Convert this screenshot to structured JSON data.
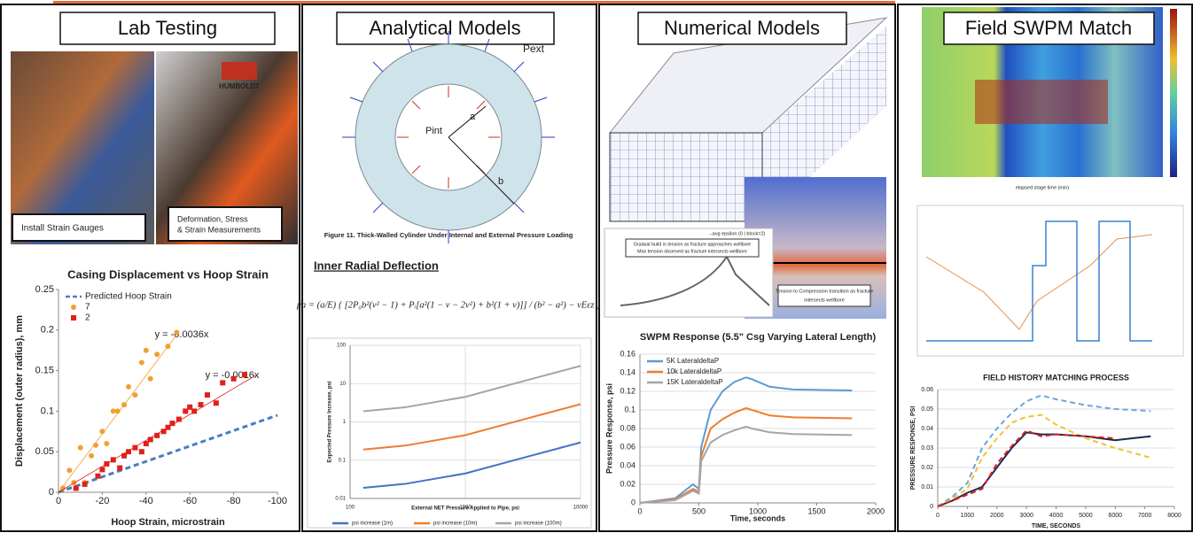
{
  "panels": [
    {
      "title": "Lab Testing",
      "captions": [
        "Install Strain Gauges",
        "Deformation, Stress",
        "& Strain Measurements"
      ],
      "brand": "HUMBOLDT"
    },
    {
      "title": "Analytical Models",
      "diagram_labels": [
        "Pext",
        "Pint",
        "a",
        "b"
      ],
      "caption": "Figure 11.  Thick-Walled Cylinder Under Internal and External Pressure Loading",
      "heading": "Inner Radial Deflection",
      "formula": "μa = (a/E) { [2P₀b²(ν² − 1) + Pᵢ[a²(1 − ν − 2ν²) + b²(1 + ν)]] / (b² − a²) − νEεz }"
    },
    {
      "title": "Numerical Models",
      "notes": [
        "Gradual build in tension as fracture approaches wellbore",
        "Max tension observed as fracture intersects wellbore",
        "Tension to Compression transition as fracture",
        "intersects wellbore"
      ],
      "legend": "--avg epsilon (0 | block=2)"
    },
    {
      "title": "Field SWPM Match",
      "heatmap_xlabel": "elapsed stage time (min)"
    }
  ],
  "chart_data": [
    {
      "type": "scatter",
      "title": "Casing Displacement vs Hoop Strain",
      "x_label": "Hoop Strain, microstrain",
      "y_label": "Displacement (outer radius), mm",
      "xlim": [
        0,
        -100
      ],
      "xticks": [
        0,
        -20,
        -40,
        -60,
        -80,
        -100
      ],
      "ylim": [
        0,
        0.25
      ],
      "yticks": [
        0,
        0.05,
        0.1,
        0.15,
        0.2,
        0.25
      ],
      "grid": false,
      "legend": "top-left",
      "annotations": [
        "y = -0.0036x",
        "y = -0.0016x"
      ],
      "series": [
        {
          "name": "Predicted Hoop Strain",
          "color": "#4a7cc4",
          "style": "line",
          "dash": true,
          "x": [
            0,
            -100
          ],
          "values": [
            0,
            0.095
          ]
        },
        {
          "name": "7",
          "color": "#f0a030",
          "style": "points",
          "marker": "circle",
          "x": [
            -2,
            -5,
            -7,
            -10,
            -12,
            -15,
            -17,
            -20,
            -22,
            -25,
            -27,
            -30,
            -32,
            -35,
            -38,
            -40,
            -42,
            -45,
            -50,
            -54
          ],
          "values": [
            0.005,
            0.027,
            0.012,
            0.055,
            0.012,
            0.045,
            0.058,
            0.075,
            0.06,
            0.1,
            0.1,
            0.108,
            0.13,
            0.12,
            0.16,
            0.175,
            0.14,
            0.17,
            0.18,
            0.197
          ]
        },
        {
          "name": "2",
          "color": "#e0201b",
          "style": "points",
          "marker": "square",
          "x": [
            -8,
            -12,
            -18,
            -20,
            -22,
            -25,
            -28,
            -30,
            -32,
            -35,
            -38,
            -40,
            -42,
            -45,
            -48,
            -50,
            -52,
            -55,
            -58,
            -60,
            -62,
            -65,
            -68,
            -72,
            -75,
            -80,
            -85
          ],
          "values": [
            0.005,
            0.01,
            0.02,
            0.028,
            0.035,
            0.04,
            0.03,
            0.045,
            0.05,
            0.055,
            0.05,
            0.06,
            0.065,
            0.07,
            0.075,
            0.08,
            0.085,
            0.09,
            0.1,
            0.105,
            0.1,
            0.108,
            0.12,
            0.11,
            0.135,
            0.14,
            0.145
          ]
        },
        {
          "color": "#f0a030",
          "style": "line",
          "x": [
            0,
            -55
          ],
          "values": [
            0,
            0.198
          ]
        },
        {
          "color": "#e0201b",
          "style": "line",
          "x": [
            0,
            -90
          ],
          "values": [
            0,
            0.144
          ]
        }
      ]
    },
    {
      "type": "line",
      "x_label": "External NET Pressure Applied to Pipe, psi",
      "y_label": "Expected Pressure Increase, psi",
      "xlog": true,
      "ylog": true,
      "xlim": [
        100,
        10000
      ],
      "xticks": [
        100,
        1000,
        10000
      ],
      "ylim": [
        0.01,
        100
      ],
      "yticks": [
        0.01,
        0.1,
        1,
        10,
        100
      ],
      "grid": true,
      "legend": "bottom",
      "series": [
        {
          "name": "psi increase (1m)",
          "color": "#4472c4",
          "style": "line",
          "x": [
            130,
            300,
            1000,
            3000,
            10000
          ],
          "values": [
            0.019,
            0.024,
            0.045,
            0.11,
            0.29
          ]
        },
        {
          "name": "psi increase (10m)",
          "color": "#ed7d31",
          "style": "line",
          "x": [
            130,
            300,
            1000,
            3000,
            10000
          ],
          "values": [
            0.19,
            0.24,
            0.45,
            1.1,
            2.9
          ]
        },
        {
          "name": "psi increase (100m)",
          "color": "#a5a5a5",
          "style": "line",
          "x": [
            130,
            300,
            1000,
            3000,
            10000
          ],
          "values": [
            1.9,
            2.4,
            4.5,
            11,
            29
          ]
        }
      ]
    },
    {
      "type": "line",
      "title": "SWPM Response (5.5\" Csg Varying Lateral Length)",
      "x_label": "Time, seconds",
      "y_label": "Pressure Response, psi",
      "xlim": [
        0,
        2000
      ],
      "xticks": [
        0,
        500,
        1000,
        1500,
        2000
      ],
      "ylim": [
        0,
        0.16
      ],
      "yticks": [
        0,
        0.02,
        0.04,
        0.06,
        0.08,
        0.1,
        0.12,
        0.14,
        0.16
      ],
      "grid": true,
      "legend": "top-left",
      "series": [
        {
          "name": "5K LateraldeltaP",
          "color": "#5b9bd5",
          "style": "line",
          "x": [
            0,
            300,
            450,
            500,
            520,
            600,
            700,
            800,
            900,
            950,
            1100,
            1300,
            1800
          ],
          "values": [
            0,
            0.005,
            0.02,
            0.015,
            0.06,
            0.1,
            0.12,
            0.13,
            0.135,
            0.133,
            0.125,
            0.122,
            0.121
          ]
        },
        {
          "name": "10k LateraldeltaP",
          "color": "#ed7d31",
          "style": "line",
          "x": [
            0,
            300,
            450,
            500,
            520,
            600,
            700,
            800,
            900,
            950,
            1100,
            1300,
            1800
          ],
          "values": [
            0,
            0.004,
            0.015,
            0.012,
            0.05,
            0.08,
            0.09,
            0.097,
            0.102,
            0.1,
            0.094,
            0.092,
            0.091
          ]
        },
        {
          "name": "15K LateraldeltaP",
          "color": "#a5a5a5",
          "style": "line",
          "x": [
            0,
            300,
            450,
            500,
            520,
            600,
            700,
            800,
            900,
            950,
            1100,
            1300,
            1800
          ],
          "values": [
            0,
            0.003,
            0.013,
            0.01,
            0.045,
            0.065,
            0.073,
            0.078,
            0.082,
            0.08,
            0.076,
            0.074,
            0.073
          ]
        }
      ]
    },
    {
      "type": "line",
      "title": "FIELD HISTORY MATCHING PROCESS",
      "x_label": "TIME, SECONDS",
      "y_label": "PRESSURE RESPONSE, PSI",
      "xlim": [
        0,
        8000
      ],
      "xticks": [
        0,
        1000,
        2000,
        3000,
        4000,
        5000,
        6000,
        7000,
        8000
      ],
      "ylim": [
        0,
        0.06
      ],
      "yticks": [
        0,
        0.01,
        0.02,
        0.03,
        0.04,
        0.05,
        0.06
      ],
      "grid": true,
      "series": [
        {
          "color": "#6aa6e0",
          "style": "line",
          "dash": true,
          "x": [
            0,
            500,
            1000,
            1500,
            2000,
            2500,
            3000,
            3500,
            4000,
            5000,
            6000,
            7200
          ],
          "values": [
            0,
            0.005,
            0.012,
            0.03,
            0.04,
            0.048,
            0.054,
            0.057,
            0.055,
            0.052,
            0.05,
            0.049
          ]
        },
        {
          "color": "#f2c231",
          "style": "line",
          "dash": true,
          "x": [
            0,
            500,
            1000,
            1500,
            2000,
            2500,
            3000,
            3500,
            4000,
            5000,
            6000,
            7200
          ],
          "values": [
            0,
            0.004,
            0.009,
            0.025,
            0.035,
            0.043,
            0.046,
            0.047,
            0.042,
            0.035,
            0.03,
            0.025
          ]
        },
        {
          "color": "#1a2a50",
          "style": "line",
          "x": [
            0,
            500,
            1000,
            1500,
            2000,
            2500,
            3000,
            3500,
            4000,
            5000,
            6000,
            7200
          ],
          "values": [
            0,
            0.003,
            0.007,
            0.01,
            0.02,
            0.03,
            0.038,
            0.037,
            0.037,
            0.036,
            0.034,
            0.036
          ]
        },
        {
          "color": "#e02020",
          "style": "line",
          "dash": true,
          "x": [
            0,
            500,
            1000,
            1500,
            2000,
            2500,
            3000,
            3500,
            4000,
            5000,
            6000,
            7200
          ],
          "values": [
            0,
            0.003,
            0.006,
            0.009,
            0.022,
            0.031,
            0.039,
            0.036,
            0.037,
            0.036,
            0.035,
            null
          ]
        }
      ]
    }
  ]
}
